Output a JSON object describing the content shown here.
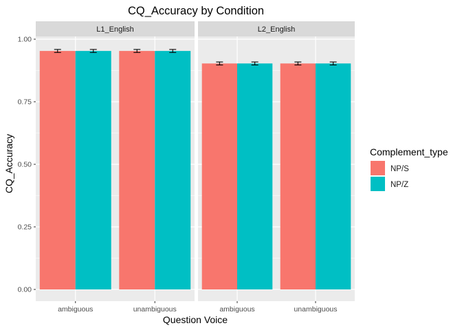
{
  "chart_data": {
    "type": "bar",
    "title": "CQ_Accuracy by Condition",
    "xlabel": "Question Voice",
    "ylabel": "CQ_Accuracy",
    "ylim": [
      0,
      1
    ],
    "yticks": [
      "0.00",
      "0.25",
      "0.50",
      "0.75",
      "1.00"
    ],
    "ytick_values": [
      0,
      0.25,
      0.5,
      0.75,
      1.0
    ],
    "categories": [
      "ambiguous",
      "unambiguous"
    ],
    "legend": {
      "title": "Complement_type",
      "position": "right"
    },
    "grid": true,
    "panels": [
      {
        "label": "L1_English",
        "series": [
          {
            "name": "NP/S",
            "color": "#F8766D",
            "values": [
              0.953,
              0.953
            ],
            "errors": [
              0.006,
              0.006
            ]
          },
          {
            "name": "NP/Z",
            "color": "#00BFC4",
            "values": [
              0.953,
              0.953
            ],
            "errors": [
              0.006,
              0.006
            ]
          }
        ]
      },
      {
        "label": "L2_English",
        "series": [
          {
            "name": "NP/S",
            "color": "#F8766D",
            "values": [
              0.903,
              0.903
            ],
            "errors": [
              0.006,
              0.006
            ]
          },
          {
            "name": "NP/Z",
            "color": "#00BFC4",
            "values": [
              0.903,
              0.903
            ],
            "errors": [
              0.006,
              0.006
            ]
          }
        ]
      }
    ]
  },
  "colors": {
    "panel_background": "#EBEBEB",
    "strip_background": "#D9D9D9",
    "grid_major": "#FFFFFF"
  }
}
